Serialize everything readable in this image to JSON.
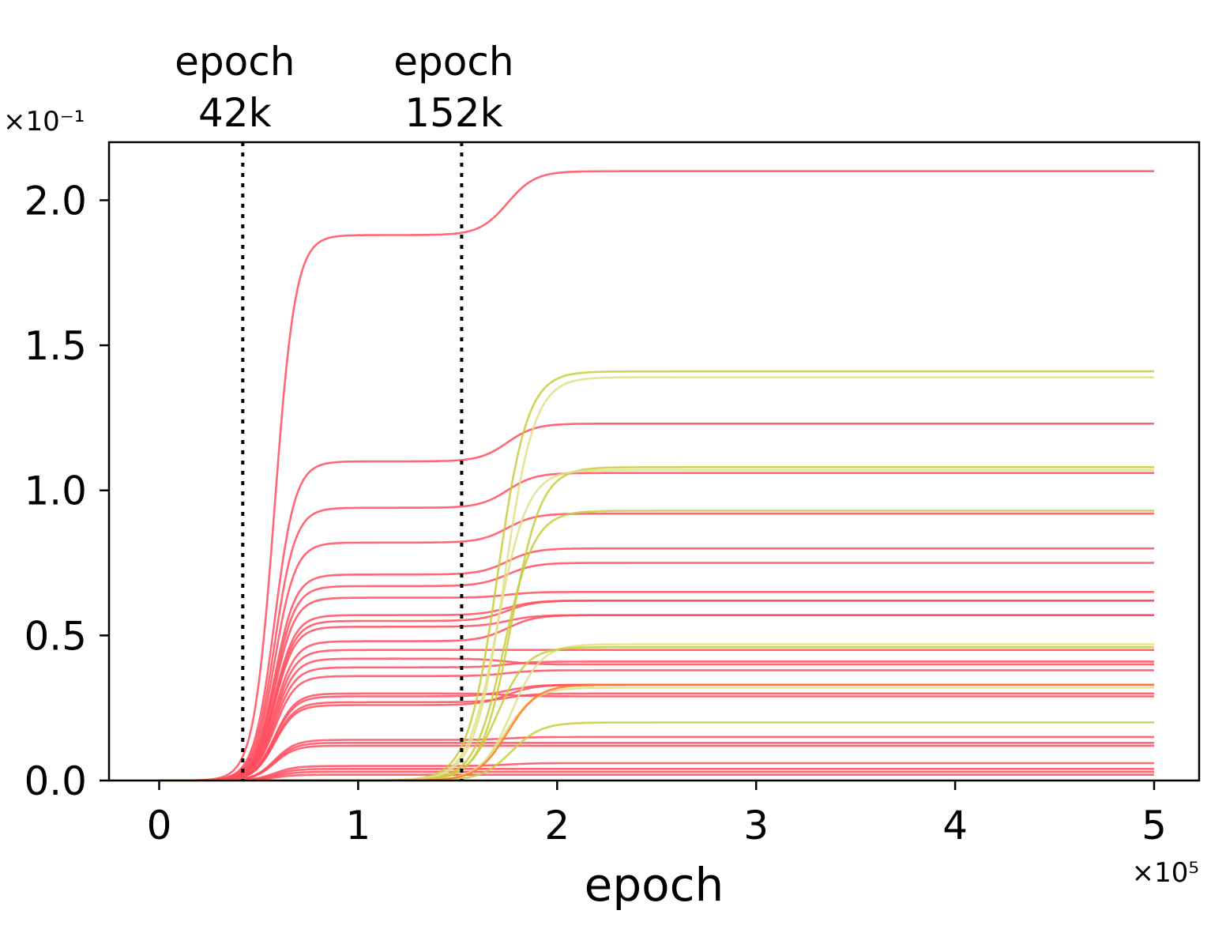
{
  "chart_data": {
    "type": "line",
    "title": "",
    "xlabel": "epoch",
    "ylabel": "",
    "x_multiplier": "×10⁵",
    "y_multiplier": "×10⁻¹",
    "xlim": [
      -25000,
      525000
    ],
    "ylim": [
      0.0,
      2.2
    ],
    "x_ticks": [
      0,
      100000,
      200000,
      300000,
      400000,
      500000
    ],
    "x_tick_labels": [
      "0",
      "1",
      "2",
      "3",
      "4",
      "5"
    ],
    "y_ticks": [
      0.0,
      0.5,
      1.0,
      1.5,
      2.0
    ],
    "y_tick_labels": [
      "0.0",
      "0.5",
      "1.0",
      "1.5",
      "2.0"
    ],
    "grid": false,
    "x_end": 500000,
    "annotations": [
      {
        "epoch": 42000,
        "line1": "epoch",
        "line2": "42k"
      },
      {
        "epoch": 152000,
        "line1": "epoch",
        "line2": "152k"
      }
    ],
    "colors": {
      "red": "#ff4d5e",
      "olive": "#c8cc3c",
      "olive_light": "#dfe08a",
      "orange": "#ff7a20"
    },
    "red_series": [
      {
        "a": 1.88,
        "b": 0.22
      },
      {
        "a": 1.1,
        "b": 0.13
      },
      {
        "a": 0.94,
        "b": 0.12
      },
      {
        "a": 0.82,
        "b": 0.1
      },
      {
        "a": 0.71,
        "b": 0.09
      },
      {
        "a": 0.67,
        "b": 0.08
      },
      {
        "a": 0.63,
        "b": 0.02
      },
      {
        "a": 0.57,
        "b": 0.05
      },
      {
        "a": 0.55,
        "b": 0.07
      },
      {
        "a": 0.53,
        "b": 0.04
      },
      {
        "a": 0.48,
        "b": 0.09
      },
      {
        "a": 0.45,
        "b": 0.0
      },
      {
        "a": 0.42,
        "b": -0.02
      },
      {
        "a": 0.39,
        "b": 0.02
      },
      {
        "a": 0.36,
        "b": 0.02
      },
      {
        "a": 0.3,
        "b": -0.01
      },
      {
        "a": 0.29,
        "b": 0.04
      },
      {
        "a": 0.27,
        "b": 0.03
      },
      {
        "a": 0.26,
        "b": 0.07
      },
      {
        "a": 0.14,
        "b": 0.01
      },
      {
        "a": 0.13,
        "b": 0.0
      },
      {
        "a": 0.12,
        "b": 0.0
      },
      {
        "a": 0.05,
        "b": 0.01
      },
      {
        "a": 0.04,
        "b": 0.0
      },
      {
        "a": 0.03,
        "b": 0.0
      },
      {
        "a": 0.02,
        "b": 0.0
      }
    ],
    "olive_series": [
      {
        "a": 0.0,
        "b": 1.41
      },
      {
        "a": 0.0,
        "b": 1.39
      },
      {
        "a": 0.0,
        "b": 1.08
      },
      {
        "a": 0.0,
        "b": 1.07
      },
      {
        "a": 0.0,
        "b": 0.93
      },
      {
        "a": 0.0,
        "b": 0.47
      },
      {
        "a": 0.0,
        "b": 0.46
      },
      {
        "a": 0.0,
        "b": 0.32
      },
      {
        "a": 0.0,
        "b": 0.2
      }
    ],
    "orange_series": [
      {
        "a": 0.0,
        "b": 0.33
      }
    ]
  }
}
